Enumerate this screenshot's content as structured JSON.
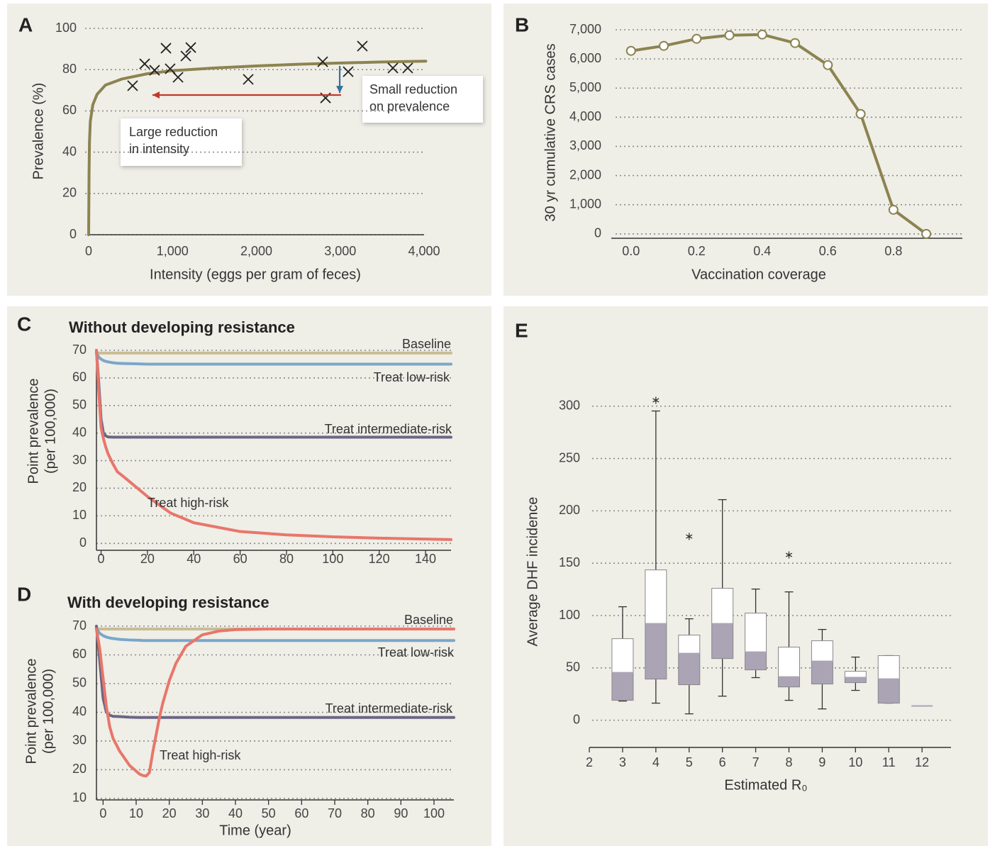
{
  "chart_data": [
    {
      "panel": "A",
      "type": "scatter",
      "x_label": "Intensity (eggs per gram of feces)",
      "y_label": "Prevalence (%)",
      "x": [
        524,
        668,
        786,
        922,
        972,
        1066,
        1159,
        1218,
        1903,
        2791,
        2825,
        3095,
        3264,
        3628,
        3805
      ],
      "y": [
        72.2,
        82.8,
        79.7,
        90.4,
        80.4,
        76.3,
        86.6,
        90.7,
        75.3,
        83.8,
        66.3,
        79.0,
        91.4,
        80.8,
        80.8
      ],
      "color": "#222222",
      "curve": {
        "x": [
          0,
          5,
          10,
          20,
          50,
          100,
          200,
          400,
          700,
          1000,
          1500,
          2000,
          2500,
          3000,
          3500,
          4020
        ],
        "y": [
          0,
          30,
          45,
          55,
          63,
          68,
          72.5,
          75.5,
          78,
          79.5,
          80.8,
          81.8,
          82.6,
          83.2,
          83.7,
          84.1
        ],
        "color": "#8c8350"
      },
      "arrows": [
        {
          "x": [
            3010,
            761
          ],
          "y": [
            67.7,
            67.7
          ],
          "color": "#c0392b"
        },
        {
          "x": [
            2994,
            2994
          ],
          "y": [
            81.8,
            68.7
          ],
          "color": "#3a6f9c"
        }
      ],
      "annotations": [
        {
          "text": [
            "Large reduction",
            "in intensity"
          ]
        },
        {
          "text": [
            "Small reduction",
            "on prevalence"
          ]
        }
      ],
      "xlim": [
        0,
        4000
      ],
      "ylim": [
        0,
        100
      ],
      "xticks": [
        0,
        {
          "value": 1000,
          "label": "1,000"
        },
        {
          "value": 2000,
          "label": "2,000"
        },
        {
          "value": 3000,
          "label": "3,000"
        },
        {
          "value": 4000,
          "label": "4,000"
        }
      ],
      "yticks": [
        0,
        20,
        40,
        60,
        80,
        100
      ],
      "grid": true
    },
    {
      "panel": "B",
      "type": "line",
      "x_label": "Vaccination coverage",
      "y_label": "30 yr cumulative CRS cases",
      "x": [
        0,
        0.1,
        0.2,
        0.3,
        0.4,
        0.5,
        0.6,
        0.7,
        0.8,
        0.9
      ],
      "values": [
        6277,
        6448,
        6691,
        6813,
        6837,
        6545,
        5791,
        4112,
        827,
        0
      ],
      "color": "#8c8350",
      "markers": true,
      "xlim": [
        -0.06,
        1.01
      ],
      "ylim": [
        -150,
        7000
      ],
      "xticks": [
        {
          "value": 0,
          "label": "0.0"
        },
        0.2,
        0.4,
        0.6,
        0.8
      ],
      "yticks": [
        0,
        {
          "value": 1000,
          "label": "1,000"
        },
        {
          "value": 2000,
          "label": "2,000"
        },
        {
          "value": 3000,
          "label": "3,000"
        },
        {
          "value": 4000,
          "label": "4,000"
        },
        {
          "value": 5000,
          "label": "5,000"
        },
        {
          "value": 6000,
          "label": "6,000"
        },
        {
          "value": 7000,
          "label": "7,000"
        }
      ],
      "grid": true
    },
    {
      "panel": "C",
      "type": "line",
      "title": "Without developing resistance",
      "y_label": [
        "Point prevalence",
        "(per 100,000)"
      ],
      "x": [
        -2,
        -1,
        0,
        1,
        2,
        3,
        5,
        7,
        10,
        15,
        20,
        30,
        40,
        60,
        80,
        100,
        120,
        151
      ],
      "series": [
        {
          "name": "Baseline",
          "color": "#c9bd95",
          "values": [
            69,
            69,
            69,
            69,
            69,
            69,
            69,
            69,
            69,
            69,
            69,
            69,
            69,
            69,
            69,
            69,
            69,
            69
          ]
        },
        {
          "name": "Treat low-risk",
          "color": "#7aa7c9",
          "values": [
            69,
            67.5,
            66.8,
            66.3,
            66,
            65.8,
            65.5,
            65.3,
            65.2,
            65.1,
            65,
            65,
            65,
            65,
            65,
            65,
            65,
            65
          ]
        },
        {
          "name": "Treat intermediate-risk",
          "color": "#6c6684",
          "values": [
            70,
            58,
            45,
            40,
            39,
            38.6,
            38.5,
            38.5,
            38.5,
            38.5,
            38.5,
            38.5,
            38.5,
            38.5,
            38.5,
            38.5,
            38.5,
            38.5
          ]
        },
        {
          "name": "Treat high-risk",
          "color": "#e8766a",
          "values": [
            70,
            55,
            42,
            38,
            35,
            32.5,
            29,
            26,
            24,
            20.5,
            17,
            11,
            7.5,
            4.3,
            3.1,
            2.4,
            1.9,
            1.4
          ]
        }
      ],
      "xlim": [
        -2,
        151
      ],
      "ylim": [
        -2.5,
        70
      ],
      "xticks": [
        0,
        20,
        40,
        60,
        80,
        100,
        120,
        140
      ],
      "yticks": [
        0,
        10,
        20,
        30,
        40,
        50,
        60,
        70
      ],
      "grid": true
    },
    {
      "panel": "D",
      "type": "line",
      "title": "With developing resistance",
      "x_label": "Time (year)",
      "y_label": [
        "Point prevalence",
        "(per 100,000)"
      ],
      "x": [
        -2,
        -1,
        0,
        1,
        2,
        3,
        5,
        8,
        11,
        12,
        13,
        14,
        15,
        16,
        17,
        18,
        20,
        22,
        25,
        30,
        35,
        40,
        50,
        106
      ],
      "series": [
        {
          "name": "Baseline",
          "color": "#c9bd95",
          "values": [
            69,
            69,
            69,
            69,
            69,
            69,
            69,
            69,
            69,
            69,
            69,
            69,
            69,
            69,
            69,
            69,
            69,
            69,
            69,
            69,
            69,
            69,
            69,
            69
          ]
        },
        {
          "name": "Treat low-risk",
          "color": "#7aa7c9",
          "values": [
            69,
            67.5,
            66.7,
            66.2,
            65.9,
            65.7,
            65.4,
            65.2,
            65.1,
            65,
            65,
            65,
            65,
            65,
            65,
            65,
            65,
            65,
            65,
            65,
            65,
            65,
            65,
            65
          ]
        },
        {
          "name": "Treat intermediate-risk",
          "color": "#6c6684",
          "values": [
            70,
            58,
            45,
            40,
            39,
            38.6,
            38.5,
            38.3,
            38.2,
            38.2,
            38.2,
            38.2,
            38.2,
            38.2,
            38.2,
            38.2,
            38.2,
            38.2,
            38.2,
            38.2,
            38.2,
            38.2,
            38.2,
            38.2
          ]
        },
        {
          "name": "Treat high-risk",
          "color": "#e8766a",
          "values": [
            69,
            62,
            52,
            42,
            35,
            31,
            26.5,
            21.5,
            18.5,
            18,
            17.8,
            19,
            26,
            32,
            38,
            43,
            51,
            57,
            63,
            67,
            68.3,
            68.8,
            69,
            69
          ]
        }
      ],
      "xlim": [
        -2,
        106
      ],
      "ylim": [
        9.5,
        70
      ],
      "xticks": [
        0,
        10,
        20,
        30,
        40,
        50,
        60,
        70,
        80,
        90,
        100
      ],
      "yticks": [
        10,
        20,
        30,
        40,
        50,
        60,
        70
      ],
      "grid": true
    },
    {
      "panel": "E",
      "type": "box",
      "x_label": "Estimated R₀",
      "y_label": "Average DHF incidence",
      "box_color_lower": "#aaa4b5",
      "box_color_upper": "#ffffff",
      "boxes": [
        {
          "x": 3,
          "whisker_low": 18.3,
          "q1": 19,
          "median": 45.4,
          "q3": 77.9,
          "whisker_high": 108.4,
          "outliers": []
        },
        {
          "x": 4,
          "whisker_low": 16.3,
          "q1": 39.3,
          "median": 92.1,
          "q3": 143.6,
          "whisker_high": 295.4,
          "outliers": [
            305.6
          ]
        },
        {
          "x": 5,
          "whisker_low": 6.1,
          "q1": 33.9,
          "median": 63.7,
          "q3": 81.3,
          "whisker_high": 96.9,
          "outliers": [
            175.5
          ]
        },
        {
          "x": 6,
          "whisker_low": 23,
          "q1": 58.9,
          "median": 92.1,
          "q3": 126,
          "whisker_high": 210.7,
          "outliers": []
        },
        {
          "x": 7,
          "whisker_low": 40.7,
          "q1": 48.1,
          "median": 65,
          "q3": 102.3,
          "whisker_high": 125.3,
          "outliers": []
        },
        {
          "x": 8,
          "whisker_low": 19,
          "q1": 31.8,
          "median": 41.3,
          "q3": 69.8,
          "whisker_high": 122.6,
          "outliers": [
            157.9
          ]
        },
        {
          "x": 9,
          "whisker_low": 10.8,
          "q1": 34.6,
          "median": 56.2,
          "q3": 75.9,
          "whisker_high": 86.7,
          "outliers": []
        },
        {
          "x": 10,
          "whisker_low": 28.5,
          "q1": 35.9,
          "median": 40.7,
          "q3": 46.7,
          "whisker_high": 60.3,
          "outliers": []
        },
        {
          "x": 11,
          "whisker_low": 16.3,
          "q1": 16.3,
          "median": 39.3,
          "q3": 61.7,
          "whisker_high": 61.7,
          "outliers": []
        },
        {
          "x": 12,
          "whisker_low": 13.6,
          "q1": 13.6,
          "median": 13.6,
          "q3": 13.6,
          "whisker_high": 13.6,
          "outliers": []
        }
      ],
      "xlim": [
        2,
        12.87
      ],
      "ylim": [
        -26,
        310
      ],
      "xticks": [
        2,
        3,
        4,
        5,
        6,
        7,
        8,
        9,
        10,
        11,
        12
      ],
      "yticks": [
        0,
        50,
        100,
        150,
        200,
        250,
        300
      ],
      "grid": true
    }
  ]
}
